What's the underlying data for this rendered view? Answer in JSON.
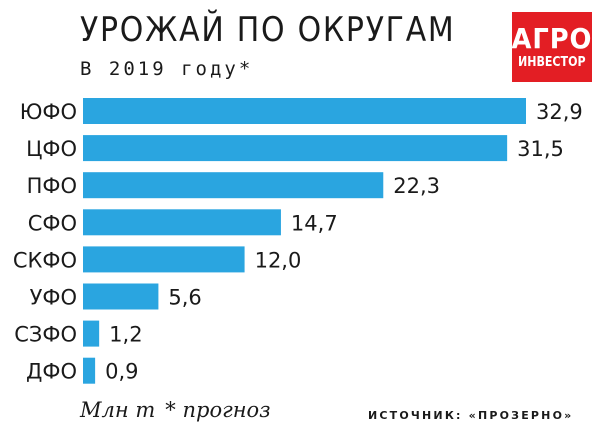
{
  "chart_data": {
    "type": "bar",
    "orientation": "horizontal",
    "title": "УРОЖАЙ ПО ОКРУГАМ",
    "subtitle": "В 2019 году*",
    "categories": [
      "ЮФО",
      "ЦФО",
      "ПФО",
      "СФО",
      "СКФО",
      "УФО",
      "СЗФО",
      "ДФО"
    ],
    "values": [
      32.9,
      31.5,
      22.3,
      14.7,
      12.0,
      5.6,
      1.2,
      0.9
    ],
    "value_labels": [
      "32,9",
      "31,5",
      "22,3",
      "14,7",
      "12,0",
      "5,6",
      "1,2",
      "0,9"
    ],
    "bar_color": "#2aa5e0",
    "xlim": [
      0,
      32.9
    ],
    "grid": false,
    "legend": "none"
  },
  "logo": {
    "line1": "АГРО",
    "line2": "ИНВЕСТОР",
    "color": "#e31e24"
  },
  "footer": {
    "unit": "Млн т",
    "forecast_note": "* прогноз",
    "source": "ИСТОЧНИК: «ПРОЗЕРНО»"
  }
}
